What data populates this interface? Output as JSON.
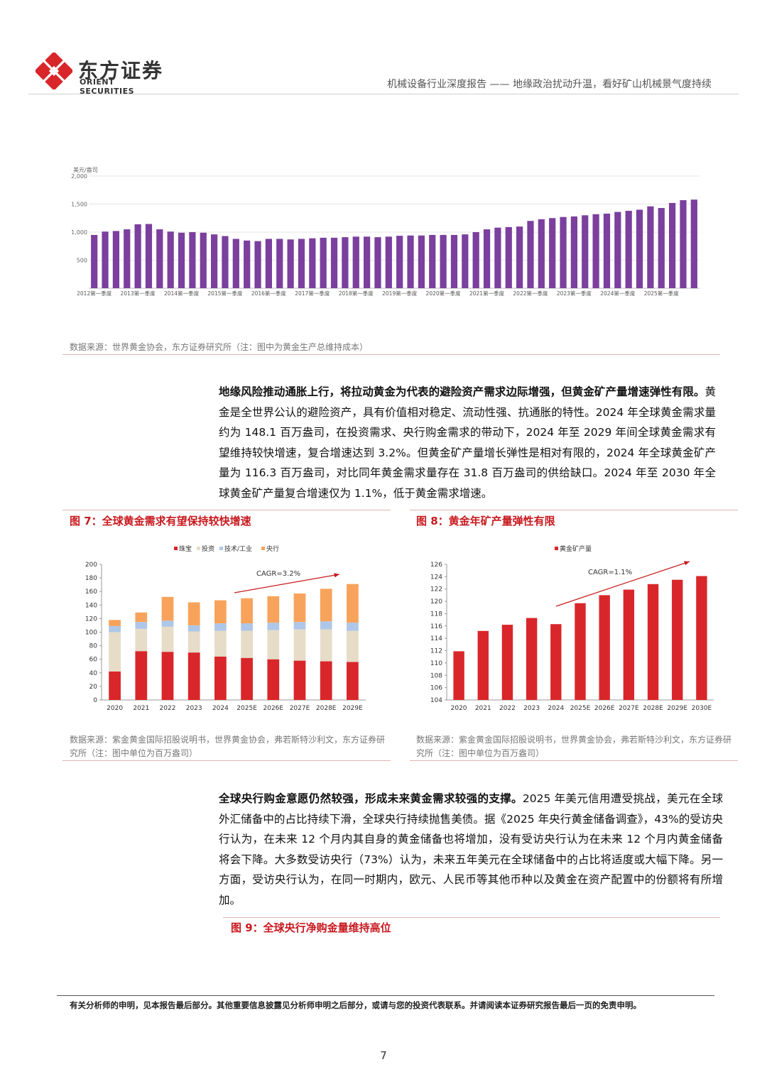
{
  "header": {
    "logo_cn": "东方证券",
    "logo_en": "ORIENT SECURITIES",
    "report_title": "机械设备行业深度报告 —— 地缘政治扰动升温，看好矿山机械景气度持续"
  },
  "chart1": {
    "source": "数据来源：世界黄金协会，东方证券研究所（注：图中为黄金生产总维持成本）",
    "chart_data": {
      "type": "bar",
      "ylabel": "美元/盎司",
      "ylim": [
        0,
        2000
      ],
      "yticks": [
        "500",
        "1,000",
        "1,500",
        "2,000"
      ],
      "xtick_labels": [
        "2012第一季度",
        "2013第一季度",
        "2014第一季度",
        "2015第一季度",
        "2016第一季度",
        "2017第一季度",
        "2018第一季度",
        "2019第一季度",
        "2020第一季度",
        "2021第一季度",
        "2022第一季度",
        "2023第一季度",
        "2024第一季度",
        "2025第一季度"
      ],
      "values": [
        950,
        1010,
        1020,
        1050,
        1140,
        1145,
        1050,
        1010,
        990,
        1000,
        990,
        960,
        930,
        880,
        850,
        840,
        880,
        880,
        870,
        880,
        890,
        900,
        900,
        910,
        920,
        920,
        910,
        920,
        935,
        940,
        940,
        950,
        950,
        950,
        960,
        1000,
        1050,
        1080,
        1090,
        1100,
        1200,
        1230,
        1250,
        1270,
        1280,
        1300,
        1320,
        1330,
        1360,
        1380,
        1400,
        1460,
        1430,
        1520,
        1570,
        1580
      ]
    }
  },
  "para1": {
    "lead": "地缘风险推动通胀上行，将拉动黄金为代表的避险资产需求边际增强，但黄金矿产量增速弹性有限。",
    "body": "黄金是全世界公认的避险资产，具有价值相对稳定、流动性强、抗通胀的特性。2024 年全球黄金需求量约为 148.1 百万盎司，在投资需求、央行购金需求的带动下，2024 年至 2029 年间全球黄金需求有望维持较快增速，复合增速达到 3.2%。但黄金矿产量增长弹性是相对有限的，2024 年全球黄金矿产量为 116.3 百万盎司，对比同年黄金需求量存在 31.8 百万盎司的供给缺口。2024 年至 2030 年全球黄金矿产量复合增速仅为 1.1%，低于黄金需求增速。"
  },
  "fig7": {
    "title": "图 7：全球黄金需求有望保持较快增速",
    "source": "数据来源：紫金黄金国际招股说明书，世界黄金协会，弗若斯特沙利文，东方证券研究所（注：图中单位为百万盎司）",
    "chart_data": {
      "type": "bar",
      "stacked": true,
      "categories": [
        "2020",
        "2021",
        "2022",
        "2023",
        "2024",
        "2025E",
        "2026E",
        "2027E",
        "2028E",
        "2029E"
      ],
      "ylim": [
        0,
        200
      ],
      "yticks": [
        "0",
        "20",
        "40",
        "60",
        "80",
        "100",
        "120",
        "140",
        "160",
        "180",
        "200"
      ],
      "annotation": "CAGR=3.2%",
      "series": [
        {
          "name": "珠宝",
          "color": "#d9262a",
          "values": [
            42,
            72,
            71,
            70,
            64,
            62,
            60,
            58,
            57,
            56
          ]
        },
        {
          "name": "投资",
          "color": "#e6dcc8",
          "values": [
            58,
            33,
            37,
            31,
            38,
            40,
            43,
            46,
            47,
            46
          ]
        },
        {
          "name": "技术/工业",
          "color": "#aec7e8",
          "values": [
            9,
            10,
            9,
            9,
            11,
            11,
            11,
            11,
            12,
            12
          ]
        },
        {
          "name": "央行",
          "color": "#f7a35c",
          "values": [
            9,
            14,
            35,
            34,
            34,
            37,
            39,
            42,
            48,
            57
          ]
        }
      ]
    }
  },
  "fig8": {
    "title": "图 8：黄金年矿产量弹性有限",
    "source": "数据来源：紫金黄金国际招股说明书，世界黄金协会，弗若斯特沙利文，东方证券研究所（注：图中单位为百万盎司）",
    "chart_data": {
      "type": "bar",
      "categories": [
        "2020",
        "2021",
        "2022",
        "2023",
        "2024",
        "2025E",
        "2026E",
        "2027E",
        "2028E",
        "2029E",
        "2030E"
      ],
      "ylim": [
        104,
        126
      ],
      "yticks": [
        "104",
        "106",
        "108",
        "110",
        "112",
        "114",
        "116",
        "118",
        "120",
        "122",
        "124",
        "126"
      ],
      "annotation": "CAGR=1.1%",
      "series": [
        {
          "name": "黄金矿产量",
          "color": "#d9262a",
          "values": [
            111.9,
            115.2,
            116.2,
            117.3,
            116.3,
            119.7,
            121.0,
            121.9,
            122.8,
            123.5,
            124.1
          ]
        }
      ]
    }
  },
  "para2": {
    "lead": "全球央行购金意愿仍然较强，形成未来黄金需求较强的支撑。",
    "body": "2025 年美元信用遭受挑战，美元在全球外汇储备中的占比持续下滑，全球央行持续抛售美债。据《2025 年央行黄金储备调查》，43%的受访央行认为，在未来 12 个月内其自身的黄金储备也将增加，没有受访央行认为在未来 12 个月内黄金储备将会下降。大多数受访央行（73%）认为，未来五年美元在全球储备中的占比将适度或大幅下降。另一方面，受访央行认为，在同一时期内，欧元、人民币等其他币种以及黄金在资产配置中的份额将有所增加。"
  },
  "fig9": {
    "title": "图 9：全球央行净购金量维持高位"
  },
  "footer": {
    "disclaimer": "有关分析师的申明，见本报告最后部分。其他重要信息披露见分析师申明之后部分，或请与您的投资代表联系。并请阅读本证券研究报告最后一页的免责申明。",
    "page_number": "7"
  }
}
